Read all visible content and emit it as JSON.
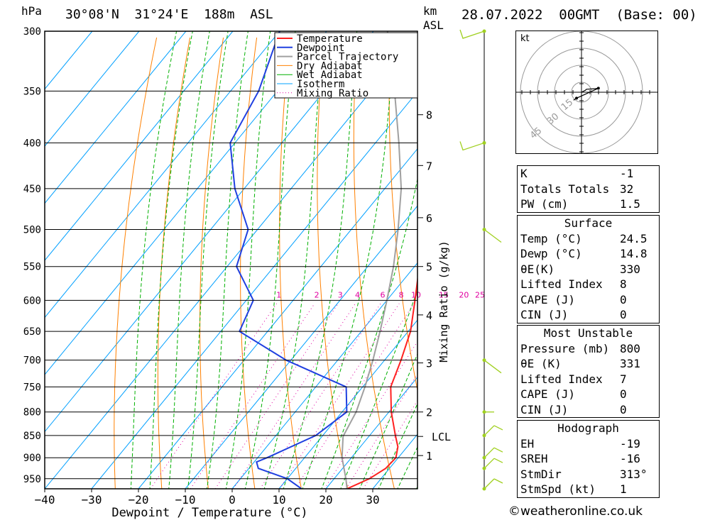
{
  "header": {
    "pressure_unit": "hPa",
    "location": "30°08'N  31°24'E  188m  ASL",
    "height_unit_top": "km",
    "height_unit_bottom": "ASL",
    "datetime": "28.07.2022  00GMT  (Base: 00)"
  },
  "chart_data": {
    "type": "line",
    "title": "30°08'N  31°24'E  188m  ASL",
    "xlabel": "Dewpoint / Temperature (°C)",
    "ylabel": "hPa",
    "secondary_ylabel": "Mixing Ratio (g/kg)",
    "x_ticks": [
      -40,
      -30,
      -20,
      -10,
      0,
      10,
      20,
      30
    ],
    "xlim": [
      -40,
      40
    ],
    "pressure_levels": [
      300,
      350,
      400,
      450,
      500,
      550,
      600,
      650,
      700,
      750,
      800,
      850,
      900,
      950
    ],
    "plim": [
      300,
      975
    ],
    "log_pressure": true,
    "height_ticks_km": [
      {
        "label": "8",
        "p": 372
      },
      {
        "label": "7",
        "p": 424
      },
      {
        "label": "6",
        "p": 485
      },
      {
        "label": "5",
        "p": 550
      },
      {
        "label": "4",
        "p": 623
      },
      {
        "label": "3",
        "p": 705
      },
      {
        "label": "2",
        "p": 800
      },
      {
        "label": "LCL",
        "p": 852
      },
      {
        "label": "1",
        "p": 895
      }
    ],
    "mixing_ratio_labels": [
      "1",
      "2",
      "3",
      "4",
      "6",
      "8",
      "10",
      "15",
      "20",
      "25"
    ],
    "legend": [
      "Temperature",
      "Dewpoint",
      "Parcel Trajectory",
      "Dry Adiabat",
      "Wet Adiabat",
      "Isotherm",
      "Mixing Ratio"
    ],
    "legend_position": "top-right",
    "colors": {
      "temperature": "#ff2020",
      "dewpoint": "#2040e0",
      "parcel": "#a0a0a0",
      "dry_adiabat": "#ff8000",
      "wet_adiabat": "#00b000",
      "isotherm": "#00a0ff",
      "mixing_ratio": "#e000a0",
      "wind_barb": "#a0d020"
    },
    "series": [
      {
        "name": "Temperature",
        "points": [
          [
            975,
            24.5
          ],
          [
            950,
            27.5
          ],
          [
            925,
            29.2
          ],
          [
            900,
            29.5
          ],
          [
            875,
            28.0
          ],
          [
            850,
            25.5
          ],
          [
            800,
            20.5
          ],
          [
            750,
            16.0
          ],
          [
            700,
            13.5
          ],
          [
            650,
            10.5
          ],
          [
            600,
            6.0
          ],
          [
            550,
            1.0
          ],
          [
            500,
            -5.5
          ],
          [
            450,
            -12.0
          ],
          [
            400,
            -19.0
          ],
          [
            370,
            -24.0
          ]
        ]
      },
      {
        "name": "Dewpoint",
        "points": [
          [
            975,
            14.8
          ],
          [
            950,
            10.0
          ],
          [
            925,
            2.0
          ],
          [
            910,
            0.5
          ],
          [
            900,
            2.0
          ],
          [
            850,
            8.5
          ],
          [
            800,
            11.0
          ],
          [
            750,
            6.5
          ],
          [
            700,
            -11.0
          ],
          [
            650,
            -26.0
          ],
          [
            600,
            -28.5
          ],
          [
            550,
            -38.0
          ],
          [
            500,
            -42.0
          ],
          [
            450,
            -52.0
          ],
          [
            400,
            -61.0
          ],
          [
            350,
            -64.0
          ],
          [
            300,
            -70.0
          ]
        ]
      },
      {
        "name": "Parcel Trajectory",
        "points": [
          [
            975,
            24.5
          ],
          [
            950,
            22.5
          ],
          [
            900,
            18.0
          ],
          [
            852,
            14.5
          ],
          [
            800,
            13.0
          ],
          [
            750,
            10.5
          ],
          [
            700,
            7.5
          ],
          [
            650,
            4.0
          ],
          [
            600,
            0.0
          ],
          [
            550,
            -4.5
          ],
          [
            500,
            -10.0
          ],
          [
            450,
            -16.5
          ],
          [
            400,
            -25.0
          ],
          [
            350,
            -35.0
          ],
          [
            300,
            -47.0
          ]
        ]
      }
    ],
    "winds": [
      {
        "p": 300,
        "barb": "full",
        "dir": "w"
      },
      {
        "p": 400,
        "barb": "full",
        "dir": "w"
      },
      {
        "p": 500,
        "barb": "line",
        "dir": "nw"
      },
      {
        "p": 700,
        "barb": "line",
        "dir": "nw"
      },
      {
        "p": 800,
        "barb": "tick",
        "dir": "e"
      },
      {
        "p": 850,
        "barb": "line",
        "dir": "ne"
      },
      {
        "p": 900,
        "barb": "line",
        "dir": "ne"
      },
      {
        "p": 925,
        "barb": "line",
        "dir": "ne"
      },
      {
        "p": 975,
        "barb": "line",
        "dir": "ne"
      }
    ]
  },
  "hodograph": {
    "unit": "kt",
    "ring_labels": [
      "15",
      "30",
      "45"
    ],
    "trace": [
      [
        0,
        0
      ],
      [
        2,
        -1
      ],
      [
        2.5,
        -1.5
      ],
      [
        7,
        -1.8
      ],
      [
        8.5,
        -2
      ],
      [
        -2.5,
        3
      ],
      [
        -4,
        4
      ]
    ]
  },
  "indices": [
    {
      "k": "K",
      "v": "-1"
    },
    {
      "k": "Totals Totals",
      "v": "32"
    },
    {
      "k": "PW (cm)",
      "v": "1.5"
    }
  ],
  "surface": {
    "title": "Surface",
    "rows": [
      {
        "k": "Temp (°C)",
        "v": "24.5"
      },
      {
        "k": "Dewp (°C)",
        "v": "14.8"
      },
      {
        "k": "θE(K)",
        "v": "330"
      },
      {
        "k": "Lifted Index",
        "v": "8"
      },
      {
        "k": "CAPE (J)",
        "v": "0"
      },
      {
        "k": "CIN (J)",
        "v": "0"
      }
    ]
  },
  "most_unstable": {
    "title": "Most Unstable",
    "rows": [
      {
        "k": "Pressure (mb)",
        "v": "800"
      },
      {
        "k": "θE (K)",
        "v": "331"
      },
      {
        "k": "Lifted Index",
        "v": "7"
      },
      {
        "k": "CAPE (J)",
        "v": "0"
      },
      {
        "k": "CIN (J)",
        "v": "0"
      }
    ]
  },
  "hodograph_table": {
    "title": "Hodograph",
    "rows": [
      {
        "k": "EH",
        "v": "-19"
      },
      {
        "k": "SREH",
        "v": "-16"
      },
      {
        "k": "StmDir",
        "v": "313°"
      },
      {
        "k": "StmSpd (kt)",
        "v": "1"
      }
    ]
  },
  "copyright": "©weatheronline.co.uk"
}
